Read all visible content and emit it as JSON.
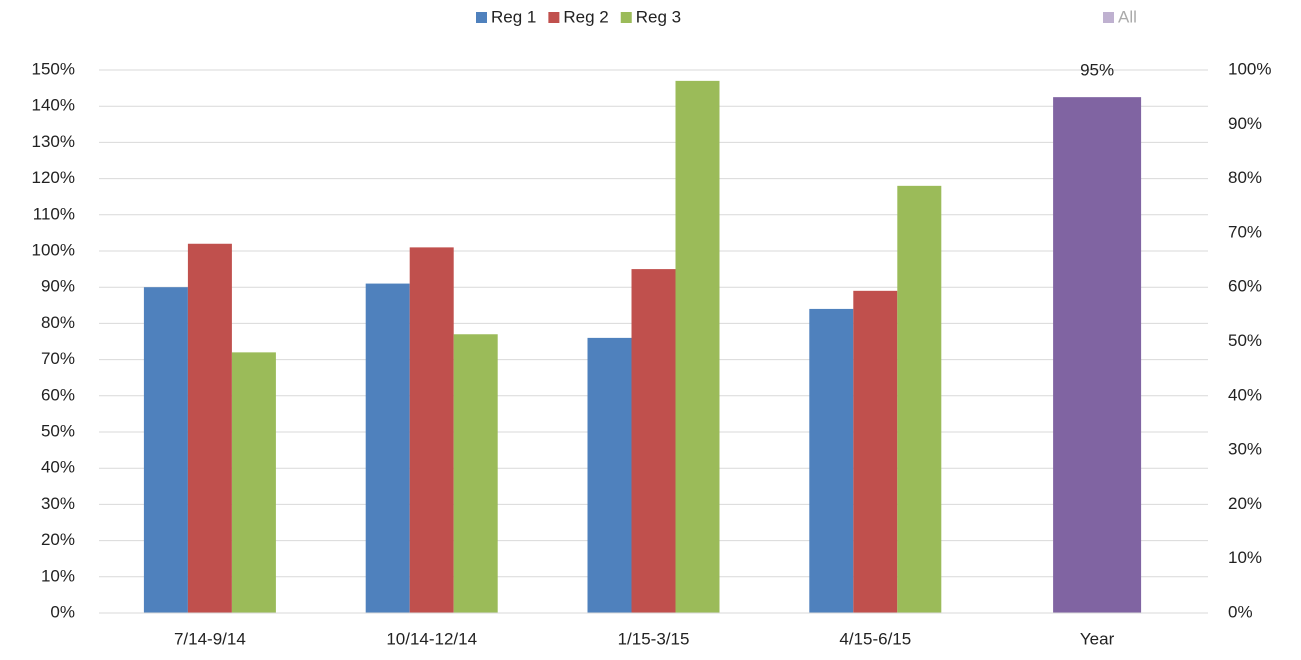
{
  "chart_data": {
    "type": "bar",
    "categories": [
      "7/14-9/14",
      "10/14-12/14",
      "1/15-3/15",
      "4/15-6/15",
      "Year"
    ],
    "series": [
      {
        "name": "Reg 1",
        "color": "#4f81bd",
        "values": [
          90,
          91,
          76,
          84,
          null
        ]
      },
      {
        "name": "Reg 2",
        "color": "#c0504d",
        "values": [
          102,
          101,
          95,
          89,
          null
        ]
      },
      {
        "name": "Reg 3",
        "color": "#9bbb59",
        "values": [
          72,
          77,
          147,
          118,
          null
        ]
      },
      {
        "name": "All",
        "color": "#8064a2",
        "axis": "y2",
        "values": [
          null,
          null,
          null,
          null,
          95
        ],
        "value_labels": [
          null,
          null,
          null,
          null,
          "95%"
        ]
      }
    ],
    "ylim": [
      0,
      150
    ],
    "yticks": [
      {
        "value": 0,
        "label": "0%"
      },
      {
        "value": 10,
        "label": "10%"
      },
      {
        "value": 20,
        "label": "20%"
      },
      {
        "value": 30,
        "label": "30%"
      },
      {
        "value": 40,
        "label": "40%"
      },
      {
        "value": 50,
        "label": "50%"
      },
      {
        "value": 60,
        "label": "60%"
      },
      {
        "value": 70,
        "label": "70%"
      },
      {
        "value": 80,
        "label": "80%"
      },
      {
        "value": 90,
        "label": "90%"
      },
      {
        "value": 100,
        "label": "100%"
      },
      {
        "value": 110,
        "label": "110%"
      },
      {
        "value": 120,
        "label": "120%"
      },
      {
        "value": 130,
        "label": "130%"
      },
      {
        "value": 140,
        "label": "140%"
      },
      {
        "value": 150,
        "label": "150%"
      }
    ],
    "y2lim": [
      0,
      100
    ],
    "y2ticks": [
      {
        "value": 0,
        "label": "0%"
      },
      {
        "value": 10,
        "label": "10%"
      },
      {
        "value": 20,
        "label": "20%"
      },
      {
        "value": 30,
        "label": "30%"
      },
      {
        "value": 40,
        "label": "40%"
      },
      {
        "value": 50,
        "label": "50%"
      },
      {
        "value": 60,
        "label": "60%"
      },
      {
        "value": 70,
        "label": "70%"
      },
      {
        "value": 80,
        "label": "80%"
      },
      {
        "value": 90,
        "label": "90%"
      },
      {
        "value": 100,
        "label": "100%"
      }
    ],
    "grid": true,
    "legend": "top"
  }
}
